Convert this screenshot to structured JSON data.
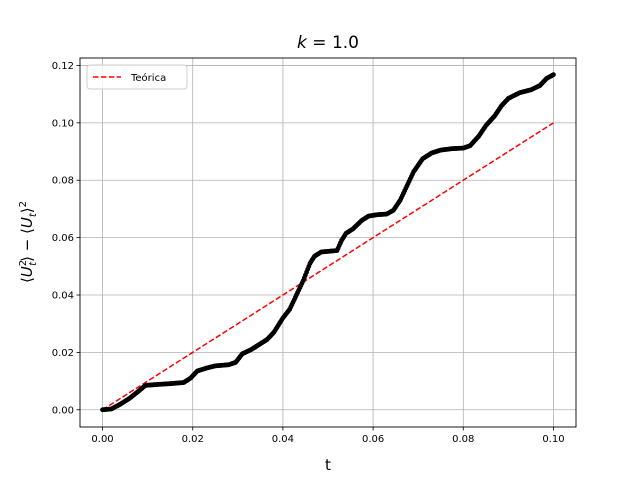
{
  "chart_data": {
    "type": "scatter",
    "title": "k = 1.0",
    "title_parts": {
      "var": "k",
      "eq": " = ",
      "value": "1.0"
    },
    "xlabel": "t",
    "ylabel": "⟨U_t²⟩ − ⟨U_t⟩²",
    "ylabel_parts": {
      "open": "⟨",
      "u1": "U",
      "sup1": "2",
      "sub1": "t",
      "mid": "⟩ − ⟨",
      "u2": "U",
      "sub2": "t",
      "close": "⟩",
      "sup2": "2"
    },
    "xlim": [
      -0.005,
      0.105
    ],
    "ylim": [
      -0.006,
      0.1226
    ],
    "x_ticks": [
      0.0,
      0.02,
      0.04,
      0.06,
      0.08,
      0.1
    ],
    "x_tick_labels": [
      "0.00",
      "0.02",
      "0.04",
      "0.06",
      "0.08",
      "0.10"
    ],
    "y_ticks": [
      0.0,
      0.02,
      0.04,
      0.06,
      0.08,
      0.1,
      0.12
    ],
    "y_tick_labels": [
      "0.00",
      "0.02",
      "0.04",
      "0.06",
      "0.08",
      "0.10",
      "0.12"
    ],
    "grid": true,
    "legend": {
      "position": "top-left",
      "entries": [
        {
          "label": "Teórica",
          "color": "#ff0000",
          "style": "dashed"
        }
      ]
    },
    "series": [
      {
        "name": "Teórica",
        "kind": "line",
        "color": "#ff0000",
        "dash": true,
        "x": [
          0.0,
          0.1
        ],
        "y": [
          0.0,
          0.1
        ]
      },
      {
        "kind": "markers",
        "color": "#000000",
        "keypoints": [
          [
            0.0,
            0.0
          ],
          [
            0.002,
            0.0003
          ],
          [
            0.004,
            0.002
          ],
          [
            0.006,
            0.004
          ],
          [
            0.008,
            0.0065
          ],
          [
            0.0095,
            0.0085
          ],
          [
            0.012,
            0.0088
          ],
          [
            0.015,
            0.0091
          ],
          [
            0.018,
            0.0095
          ],
          [
            0.0195,
            0.011
          ],
          [
            0.021,
            0.0135
          ],
          [
            0.023,
            0.0145
          ],
          [
            0.025,
            0.0153
          ],
          [
            0.028,
            0.0157
          ],
          [
            0.0295,
            0.0165
          ],
          [
            0.031,
            0.0195
          ],
          [
            0.033,
            0.021
          ],
          [
            0.035,
            0.023
          ],
          [
            0.0365,
            0.0245
          ],
          [
            0.038,
            0.027
          ],
          [
            0.04,
            0.032
          ],
          [
            0.0415,
            0.035
          ],
          [
            0.043,
            0.04
          ],
          [
            0.0445,
            0.045
          ],
          [
            0.046,
            0.051
          ],
          [
            0.047,
            0.0535
          ],
          [
            0.0485,
            0.055
          ],
          [
            0.05,
            0.0552
          ],
          [
            0.052,
            0.0555
          ],
          [
            0.053,
            0.059
          ],
          [
            0.054,
            0.0615
          ],
          [
            0.0555,
            0.063
          ],
          [
            0.0575,
            0.066
          ],
          [
            0.059,
            0.0675
          ],
          [
            0.061,
            0.068
          ],
          [
            0.063,
            0.0682
          ],
          [
            0.0645,
            0.0695
          ],
          [
            0.066,
            0.073
          ],
          [
            0.0675,
            0.078
          ],
          [
            0.069,
            0.083
          ],
          [
            0.071,
            0.0875
          ],
          [
            0.073,
            0.0895
          ],
          [
            0.075,
            0.0905
          ],
          [
            0.0775,
            0.091
          ],
          [
            0.08,
            0.0912
          ],
          [
            0.0815,
            0.092
          ],
          [
            0.0835,
            0.0955
          ],
          [
            0.085,
            0.099
          ],
          [
            0.087,
            0.1025
          ],
          [
            0.0885,
            0.106
          ],
          [
            0.09,
            0.1085
          ],
          [
            0.0925,
            0.1105
          ],
          [
            0.095,
            0.1115
          ],
          [
            0.097,
            0.113
          ],
          [
            0.0985,
            0.1155
          ],
          [
            0.1,
            0.1168
          ]
        ]
      }
    ]
  }
}
